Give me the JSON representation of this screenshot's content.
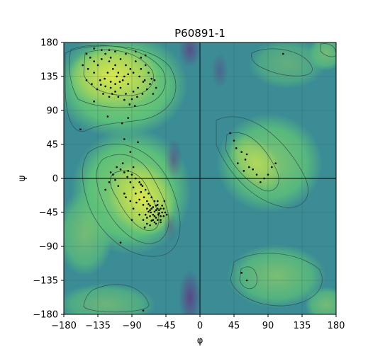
{
  "chart_data": {
    "type": "scatter",
    "title": "P60891-1",
    "xlabel": "φ",
    "ylabel": "ψ",
    "xlim": [
      -180,
      180
    ],
    "ylim": [
      -180,
      180
    ],
    "xticks": [
      -180,
      -135,
      -90,
      -45,
      0,
      45,
      90,
      135,
      180
    ],
    "yticks": [
      -180,
      -135,
      -90,
      -45,
      0,
      45,
      90,
      135,
      180
    ],
    "xtick_labels": [
      "−180",
      "−135",
      "−90",
      "−45",
      "0",
      "45",
      "90",
      "135",
      "180"
    ],
    "ytick_labels": [
      "−180",
      "−135",
      "−90",
      "−45",
      "0",
      "45",
      "90",
      "135",
      "180"
    ],
    "grid": true,
    "background": "Ramachandran density heatmap (viridis) with contour lines",
    "colors": {
      "high_density": "#d9e64a",
      "mid_density": "#5bbf7a",
      "low_density": "#3b8c95",
      "lowest_density": "#5d3f86",
      "points": "#000000",
      "contour": "#2f4f4f"
    },
    "series": [
      {
        "points": [
          [
            -150,
            165
          ],
          [
            -145,
            160
          ],
          [
            -140,
            155
          ],
          [
            -135,
            150
          ],
          [
            -130,
            158
          ],
          [
            -125,
            165
          ],
          [
            -118,
            160
          ],
          [
            -112,
            150
          ],
          [
            -105,
            158
          ],
          [
            -98,
            150
          ],
          [
            -92,
            145
          ],
          [
            -85,
            155
          ],
          [
            -78,
            160
          ],
          [
            -72,
            150
          ],
          [
            -68,
            140
          ],
          [
            -64,
            132
          ],
          [
            -75,
            128
          ],
          [
            -82,
            120
          ],
          [
            -88,
            115
          ],
          [
            -95,
            125
          ],
          [
            -102,
            130
          ],
          [
            -110,
            135
          ],
          [
            -118,
            128
          ],
          [
            -125,
            122
          ],
          [
            -132,
            130
          ],
          [
            -140,
            140
          ],
          [
            -148,
            145
          ],
          [
            -155,
            150
          ],
          [
            -150,
            130
          ],
          [
            -143,
            125
          ],
          [
            -136,
            118
          ],
          [
            -128,
            112
          ],
          [
            -120,
            108
          ],
          [
            -112,
            115
          ],
          [
            -105,
            120
          ],
          [
            -98,
            112
          ],
          [
            -90,
            105
          ],
          [
            -83,
            108
          ],
          [
            -76,
            112
          ],
          [
            -70,
            118
          ],
          [
            -122,
            140
          ],
          [
            -115,
            145
          ],
          [
            -108,
            140
          ],
          [
            -100,
            135
          ],
          [
            -95,
            138
          ],
          [
            -88,
            140
          ],
          [
            -80,
            135
          ],
          [
            -73,
            130
          ],
          [
            -66,
            125
          ],
          [
            -60,
            130
          ],
          [
            -58,
            120
          ],
          [
            -62,
            112
          ],
          [
            -118,
            120
          ],
          [
            -112,
            125
          ],
          [
            -106,
            128
          ],
          [
            -126,
            132
          ],
          [
            -131,
            124
          ],
          [
            -116,
            112
          ],
          [
            -108,
            108
          ],
          [
            -100,
            104
          ],
          [
            -93,
            98
          ],
          [
            -86,
            96
          ],
          [
            -122,
            82
          ],
          [
            -95,
            80
          ],
          [
            -140,
            102
          ],
          [
            -158,
            65
          ],
          [
            -103,
            73
          ],
          [
            -100,
            52
          ],
          [
            -92,
            35
          ],
          [
            -88,
            15
          ],
          [
            -82,
            48
          ],
          [
            -120,
            155
          ],
          [
            -130,
            170
          ],
          [
            -140,
            172
          ],
          [
            -112,
            168
          ],
          [
            -98,
            165
          ],
          [
            -85,
            168
          ],
          [
            -78,
            145
          ],
          [
            -72,
            163
          ],
          [
            -120,
            170
          ],
          [
            -102,
            20
          ],
          [
            -95,
            10
          ],
          [
            -90,
            5
          ],
          [
            -85,
            0
          ],
          [
            -80,
            -5
          ],
          [
            -76,
            -10
          ],
          [
            -72,
            -15
          ],
          [
            -68,
            -20
          ],
          [
            -64,
            -25
          ],
          [
            -60,
            -30
          ],
          [
            -56,
            -35
          ],
          [
            -52,
            -40
          ],
          [
            -50,
            -45
          ],
          [
            -55,
            -48
          ],
          [
            -60,
            -50
          ],
          [
            -65,
            -45
          ],
          [
            -70,
            -40
          ],
          [
            -75,
            -35
          ],
          [
            -80,
            -28
          ],
          [
            -85,
            -20
          ],
          [
            -88,
            -12
          ],
          [
            -92,
            -5
          ],
          [
            -96,
            2
          ],
          [
            -100,
            8
          ],
          [
            -105,
            12
          ],
          [
            -110,
            15
          ],
          [
            -115,
            5
          ],
          [
            -120,
            -5
          ],
          [
            -125,
            -15
          ],
          [
            -100,
            -20
          ],
          [
            -62,
            -38
          ],
          [
            -58,
            -42
          ],
          [
            -54,
            -46
          ],
          [
            -66,
            -36
          ],
          [
            -70,
            -30
          ],
          [
            -74,
            -25
          ],
          [
            -58,
            -52
          ],
          [
            -62,
            -55
          ],
          [
            -66,
            -50
          ],
          [
            -52,
            -50
          ],
          [
            -48,
            -40
          ],
          [
            -56,
            -30
          ],
          [
            -64,
            -40
          ],
          [
            -68,
            -44
          ],
          [
            -72,
            -48
          ],
          [
            -60,
            -44
          ],
          [
            -56,
            -40
          ],
          [
            -62,
            -48
          ],
          [
            -66,
            -42
          ],
          [
            -58,
            -36
          ],
          [
            -54,
            -42
          ],
          [
            -50,
            -36
          ],
          [
            -70,
            -52
          ],
          [
            -64,
            -56
          ],
          [
            -60,
            -58
          ],
          [
            -56,
            -55
          ],
          [
            -52,
            -55
          ],
          [
            -48,
            -50
          ],
          [
            -46,
            -45
          ],
          [
            -68,
            -34
          ],
          [
            -105,
            -85
          ],
          [
            -78,
            -8
          ],
          [
            -84,
            -32
          ],
          [
            -70,
            -60
          ],
          [
            -75,
            -55
          ],
          [
            -80,
            -48
          ],
          [
            -88,
            -40
          ],
          [
            -92,
            -30
          ],
          [
            -98,
            -25
          ],
          [
            -108,
            -10
          ],
          [
            -112,
            -2
          ],
          [
            -118,
            8
          ],
          [
            -90,
            -55
          ],
          [
            -73,
            -65
          ],
          [
            -66,
            -62
          ],
          [
            -58,
            -60
          ],
          [
            -52,
            -58
          ],
          [
            -47,
            -30
          ],
          [
            -44,
            -48
          ],
          [
            -78,
            -18
          ],
          [
            40,
            60
          ],
          [
            45,
            50
          ],
          [
            55,
            35
          ],
          [
            60,
            25
          ],
          [
            65,
            15
          ],
          [
            58,
            10
          ],
          [
            50,
            20
          ],
          [
            48,
            40
          ],
          [
            62,
            32
          ],
          [
            70,
            12
          ],
          [
            75,
            5
          ],
          [
            80,
            -5
          ],
          [
            85,
            0
          ],
          [
            90,
            5
          ],
          [
            95,
            15
          ],
          [
            100,
            20
          ],
          [
            110,
            165
          ],
          [
            55,
            -125
          ],
          [
            62,
            -135
          ],
          [
            -75,
            -175
          ]
        ]
      }
    ]
  }
}
